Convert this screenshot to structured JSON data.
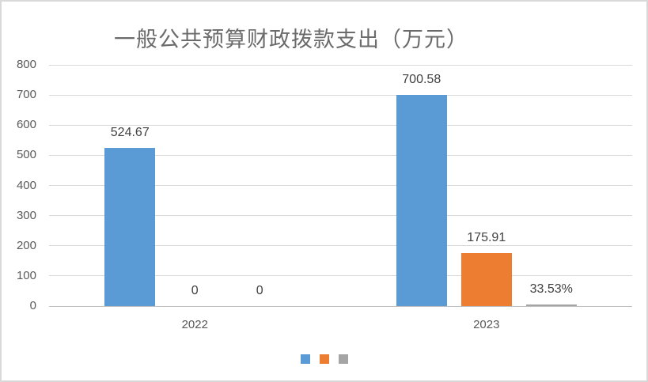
{
  "chart": {
    "background": "#ffffff",
    "border_color": "#d9d9d9"
  },
  "chart_data": {
    "type": "bar",
    "title": "一般公共预算财政拨款支出（万元）",
    "title_color": "#6b6b6b",
    "categories": [
      "2022",
      "2023"
    ],
    "series": [
      {
        "color": "#5b9bd5",
        "values": [
          524.67,
          700.58
        ],
        "data_labels": [
          "524.67",
          "700.58"
        ]
      },
      {
        "color": "#ed7d31",
        "values": [
          0,
          175.91
        ],
        "data_labels": [
          "0",
          "175.91"
        ]
      },
      {
        "color": "#a5a5a5",
        "values": [
          0,
          0.3353
        ],
        "data_labels": [
          "0",
          "33.53%"
        ]
      }
    ],
    "xlabel": "",
    "ylabel": "",
    "ylim": [
      0,
      800
    ],
    "yticks": [
      0,
      100,
      200,
      300,
      400,
      500,
      600,
      700,
      800
    ],
    "grid": true,
    "gridline_color": "#d9d9d9",
    "baseline_color": "#bfbfbf",
    "axis_text_color": "#595959",
    "data_label_color": "#404040",
    "legend_position": "bottom",
    "legend": [
      {
        "color": "#5b9bd5",
        "label": ""
      },
      {
        "color": "#ed7d31",
        "label": ""
      },
      {
        "color": "#a5a5a5",
        "label": ""
      }
    ]
  }
}
